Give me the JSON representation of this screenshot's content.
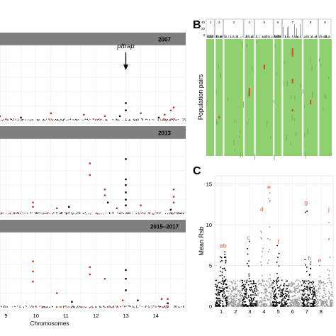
{
  "figure": {
    "panel_labels": [
      "B",
      "C"
    ]
  },
  "chart_data": [
    {
      "type": "scatter",
      "panel": "A",
      "facets": [
        {
          "title": "2007",
          "annotation": "pftrap",
          "annotation_chrom": 13,
          "black": [
            [
              13,
              0.12
            ],
            [
              13,
              0.07
            ],
            [
              8.2,
              0.03
            ],
            [
              9.5,
              0.02
            ],
            [
              12.8,
              0.03
            ],
            [
              14.1,
              0.02
            ]
          ],
          "red": [
            [
              14.6,
              0.09
            ],
            [
              14.5,
              0.07
            ],
            [
              10.5,
              0.05
            ],
            [
              11.6,
              0.04
            ],
            [
              13.5,
              0.05
            ],
            [
              8.8,
              0.03
            ],
            [
              12.3,
              0.03
            ],
            [
              14.3,
              0.04
            ]
          ]
        },
        {
          "title": "2013",
          "black": [
            [
              13,
              0.38
            ],
            [
              13,
              0.24
            ],
            [
              13,
              0.2
            ],
            [
              13,
              0.15
            ],
            [
              13,
              0.1
            ],
            [
              13,
              0.06
            ],
            [
              12.4,
              0.08
            ],
            [
              11.1,
              0.05
            ],
            [
              14.5,
              0.03
            ]
          ],
          "red": [
            [
              11.8,
              0.35
            ],
            [
              11.8,
              0.27
            ],
            [
              12.3,
              0.17
            ],
            [
              12.3,
              0.13
            ],
            [
              14.6,
              0.17
            ],
            [
              14.6,
              0.12
            ],
            [
              14.6,
              0.08
            ],
            [
              9.9,
              0.08
            ],
            [
              9.9,
              0.05
            ],
            [
              13.5,
              0.06
            ],
            [
              10.7,
              0.04
            ],
            [
              12.7,
              0.04
            ],
            [
              8.2,
              0.03
            ]
          ]
        },
        {
          "title": "2015–2017",
          "black": [
            [
              13,
              0.26
            ],
            [
              13,
              0.2
            ],
            [
              8.1,
              0.22
            ],
            [
              13,
              0.12
            ],
            [
              13.4,
              0.05
            ],
            [
              11.2,
              0.04
            ],
            [
              14.4,
              0.03
            ]
          ],
          "red": [
            [
              9.9,
              0.32
            ],
            [
              9.9,
              0.25
            ],
            [
              9.9,
              0.18
            ],
            [
              11.8,
              0.28
            ],
            [
              11.8,
              0.23
            ],
            [
              12.3,
              0.2
            ],
            [
              10.7,
              0.1
            ],
            [
              14.2,
              0.06
            ],
            [
              12.9,
              0.05
            ],
            [
              14.4,
              0.06
            ]
          ]
        }
      ],
      "xlabel": "Chromosomes",
      "x_ticks": [
        9,
        10,
        11,
        12,
        13,
        14
      ],
      "x_tick_labels": [
        "9",
        "10",
        "11",
        "12",
        "13",
        "14"
      ],
      "xlim": [
        8.8,
        15.0
      ],
      "ylim": [
        0,
        0.5
      ],
      "grid": true
    },
    {
      "type": "heatmap",
      "panel": "B",
      "ylabel": "Population pairs",
      "chromosomes": [
        "1",
        "2",
        "3",
        "4",
        "5",
        "6",
        "7",
        "8",
        "9"
      ],
      "base_color": "#8fd16f",
      "highlight_color": "#d8462e",
      "highlights": [
        [
          7,
          0.08,
          0.15
        ],
        [
          4,
          0.42,
          0.49
        ],
        [
          7,
          0.34,
          0.38
        ],
        [
          7,
          0.6,
          0.62
        ],
        [
          5,
          0.22,
          0.26
        ],
        [
          8,
          0.52,
          0.56
        ],
        [
          2,
          0.66,
          0.68
        ]
      ],
      "top_track_ticks": [
        "40",
        "20",
        "0"
      ]
    },
    {
      "type": "scatter",
      "panel": "C",
      "ylabel": "Mean Rsb",
      "yticks": [
        0,
        5,
        10,
        15
      ],
      "ylim": [
        0,
        16
      ],
      "x_ticks": [
        1,
        2,
        3,
        4,
        5,
        6,
        7,
        8
      ],
      "x_tick_labels": [
        "1",
        "2",
        "3",
        "4",
        "5",
        "6",
        "7",
        "8"
      ],
      "xlim": [
        0.55,
        8.85
      ],
      "grid": true,
      "chromosome_colors": [
        "#000000",
        "#9a9a9a",
        "#000000",
        "#9a9a9a",
        "#000000",
        "#9a9a9a",
        "#000000",
        "#9a9a9a"
      ],
      "peaks": [
        {
          "label": "a",
          "x": 1.0,
          "y": 7.0
        },
        {
          "label": "b",
          "x": 1.25,
          "y": 7.0
        },
        {
          "label": "c",
          "x": 2.9,
          "y": 8.0
        },
        {
          "label": "d",
          "x": 3.85,
          "y": 11.5
        },
        {
          "label": "e",
          "x": 4.35,
          "y": 14.2
        },
        {
          "label": "f",
          "x": 5.0,
          "y": 7.5
        },
        {
          "label": "g",
          "x": 6.95,
          "y": 12.3
        },
        {
          "label": "h",
          "x": 7.2,
          "y": 5.5
        },
        {
          "label": "e",
          "x": 7.9,
          "y": 5.2
        },
        {
          "label": "j",
          "x": 8.55,
          "y": 11.5
        }
      ]
    }
  ]
}
